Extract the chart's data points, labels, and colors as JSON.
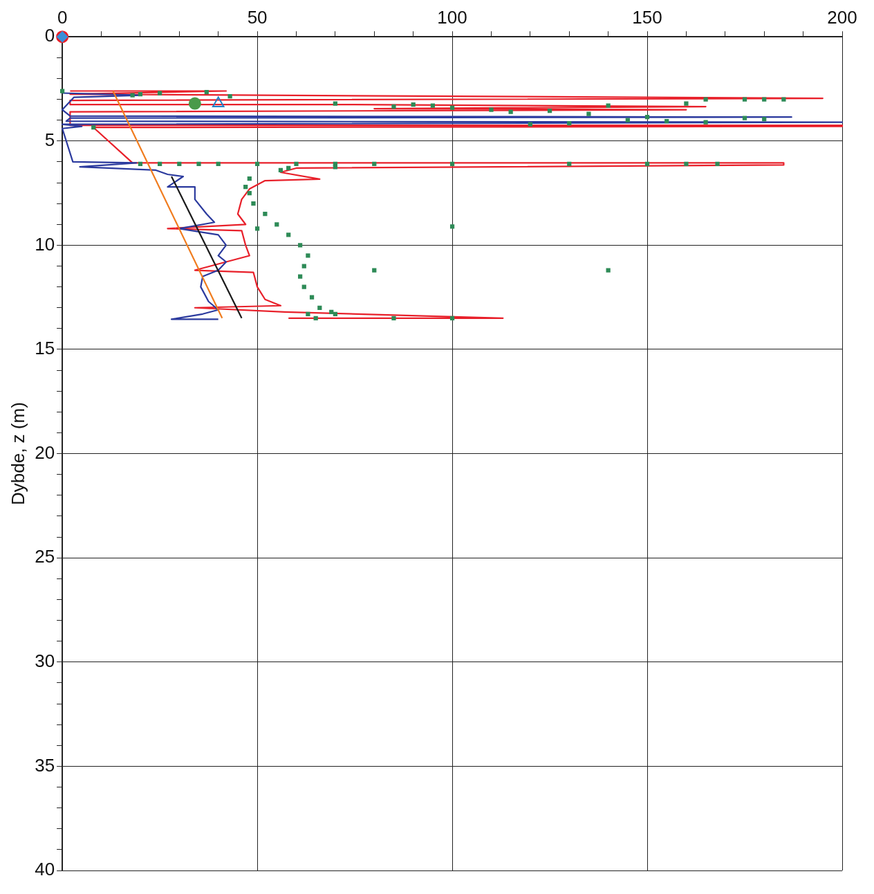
{
  "chart_data": {
    "type": "line",
    "ylabel": "Dybde, z (m)",
    "xlim": [
      0,
      200
    ],
    "ylim": [
      40,
      0
    ],
    "xticks": [
      0,
      {
        "value": 10,
        "label": null
      },
      {
        "value": 20,
        "label": null
      },
      {
        "value": 30,
        "label": null
      },
      {
        "value": 40,
        "label": null
      },
      50,
      {
        "value": 60,
        "label": null
      },
      {
        "value": 70,
        "label": null
      },
      {
        "value": 80,
        "label": null
      },
      {
        "value": 90,
        "label": null
      },
      100,
      {
        "value": 110,
        "label": null
      },
      {
        "value": 120,
        "label": null
      },
      {
        "value": 130,
        "label": null
      },
      {
        "value": 140,
        "label": null
      },
      150,
      {
        "value": 160,
        "label": null
      },
      {
        "value": 170,
        "label": null
      },
      {
        "value": 180,
        "label": null
      },
      {
        "value": 190,
        "label": null
      },
      200
    ],
    "yticks": [
      0,
      {
        "value": 1,
        "label": null
      },
      {
        "value": 2,
        "label": null
      },
      {
        "value": 3,
        "label": null
      },
      {
        "value": 4,
        "label": null
      },
      5,
      {
        "value": 6,
        "label": null
      },
      {
        "value": 7,
        "label": null
      },
      {
        "value": 8,
        "label": null
      },
      {
        "value": 9,
        "label": null
      },
      10,
      {
        "value": 11,
        "label": null
      },
      {
        "value": 12,
        "label": null
      },
      {
        "value": 13,
        "label": null
      },
      {
        "value": 14,
        "label": null
      },
      15,
      {
        "value": 16,
        "label": null
      },
      {
        "value": 17,
        "label": null
      },
      {
        "value": 18,
        "label": null
      },
      {
        "value": 19,
        "label": null
      },
      20,
      {
        "value": 21,
        "label": null
      },
      {
        "value": 22,
        "label": null
      },
      {
        "value": 23,
        "label": null
      },
      {
        "value": 24,
        "label": null
      },
      25,
      {
        "value": 26,
        "label": null
      },
      {
        "value": 27,
        "label": null
      },
      {
        "value": 28,
        "label": null
      },
      {
        "value": 29,
        "label": null
      },
      30,
      {
        "value": 31,
        "label": null
      },
      {
        "value": 32,
        "label": null
      },
      {
        "value": 33,
        "label": null
      },
      {
        "value": 34,
        "label": null
      },
      35,
      {
        "value": 36,
        "label": null
      },
      {
        "value": 37,
        "label": null
      },
      {
        "value": 38,
        "label": null
      },
      {
        "value": 39,
        "label": null
      },
      40
    ],
    "grid": true,
    "legend": false,
    "series": [
      {
        "type": "line",
        "color": "#e8202a",
        "marker": "none",
        "x": [
          2,
          42,
          2,
          195,
          2,
          2,
          75,
          165,
          80,
          160,
          2,
          2,
          200,
          200,
          8,
          18,
          185,
          185,
          60,
          56,
          66,
          52,
          48,
          46,
          45,
          47,
          27,
          46,
          47,
          48,
          34,
          49,
          50,
          52,
          56,
          34,
          57,
          113,
          58
        ],
        "values": [
          2.6,
          2.6,
          2.75,
          2.95,
          3.05,
          3.25,
          3.25,
          3.35,
          3.45,
          3.5,
          3.6,
          4.25,
          4.25,
          4.3,
          4.35,
          6.05,
          6.05,
          6.15,
          6.3,
          6.5,
          6.83,
          6.9,
          7.3,
          7.8,
          8.5,
          9.0,
          9.2,
          9.3,
          10,
          10.5,
          11.2,
          11.3,
          12,
          12.6,
          12.9,
          13.0,
          13.2,
          13.5,
          13.5
        ]
      },
      {
        "type": "line",
        "color": "#2b3a9e",
        "marker": "none",
        "x": [
          0,
          20,
          3,
          1,
          0,
          2,
          187,
          2,
          1,
          200,
          0,
          5,
          0,
          2.7,
          19,
          4.5,
          24,
          27,
          31,
          27,
          34,
          34,
          37,
          39,
          30,
          40,
          42,
          40,
          42,
          40,
          36,
          35.5,
          37.5,
          40,
          36,
          28,
          40
        ],
        "values": [
          2.7,
          2.8,
          2.9,
          3.3,
          3.5,
          3.8,
          3.85,
          3.9,
          4.05,
          4.1,
          4.2,
          4.3,
          4.4,
          6.0,
          6.05,
          6.24,
          6.4,
          6.6,
          6.7,
          7.2,
          7.2,
          7.8,
          8.5,
          8.9,
          9.2,
          9.5,
          10,
          10.5,
          10.8,
          11.2,
          11.5,
          12.0,
          12.7,
          13.1,
          13.3,
          13.55,
          13.55
        ]
      },
      {
        "type": "scatter",
        "color": "#2e8b57",
        "marker": "square",
        "x": [
          0,
          20,
          18,
          25,
          37,
          43,
          70,
          90,
          85,
          95,
          100,
          110,
          125,
          140,
          160,
          175,
          180,
          185,
          165,
          120,
          130,
          145,
          155,
          165,
          175,
          180,
          115,
          135,
          150,
          8,
          20,
          25,
          30,
          35,
          40,
          50,
          60,
          70,
          80,
          100,
          130,
          150,
          160,
          168,
          56,
          58,
          70,
          48,
          47,
          48,
          49,
          52,
          55,
          58,
          61,
          63,
          62,
          61,
          62,
          64,
          66,
          65,
          100,
          80,
          140,
          69,
          63,
          70,
          85,
          100,
          50
        ],
        "values": [
          2.6,
          2.75,
          2.8,
          2.7,
          2.65,
          2.85,
          3.2,
          3.25,
          3.35,
          3.3,
          3.4,
          3.5,
          3.55,
          3.3,
          3.2,
          3.0,
          3.0,
          3.0,
          3.0,
          4.2,
          4.15,
          4.0,
          4.05,
          4.1,
          3.9,
          3.95,
          3.6,
          3.7,
          3.85,
          4.35,
          6.1,
          6.1,
          6.1,
          6.1,
          6.1,
          6.1,
          6.1,
          6.1,
          6.1,
          6.1,
          6.1,
          6.1,
          6.1,
          6.1,
          6.4,
          6.3,
          6.25,
          6.8,
          7.2,
          7.5,
          8.0,
          8.5,
          9.0,
          9.5,
          10.0,
          10.5,
          11.0,
          11.5,
          12.0,
          12.5,
          13.0,
          13.5,
          9.1,
          11.2,
          11.2,
          13.2,
          13.3,
          13.3,
          13.5,
          13.5,
          9.2
        ]
      },
      {
        "type": "line",
        "color": "#f07c1e",
        "marker": "none",
        "x": [
          13,
          41
        ],
        "values": [
          2.6,
          13.5
        ]
      },
      {
        "type": "line",
        "color": "#1a1a1a",
        "marker": "none",
        "x": [
          28,
          46
        ],
        "values": [
          6.7,
          13.5
        ]
      },
      {
        "type": "scatter",
        "color": "#e8202a",
        "marker": "circle",
        "x": [
          0
        ],
        "values": [
          0
        ]
      },
      {
        "type": "scatter",
        "color": "#3a8fd8",
        "marker": "diamond",
        "x": [
          0
        ],
        "values": [
          0
        ]
      },
      {
        "type": "scatter",
        "color": "#4a9a4a",
        "marker": "circle",
        "x": [
          34
        ],
        "values": [
          3.2
        ]
      },
      {
        "type": "scatter",
        "color": "#1f7fc8",
        "marker": "triangle",
        "x": [
          40
        ],
        "values": [
          3.2
        ]
      }
    ]
  }
}
